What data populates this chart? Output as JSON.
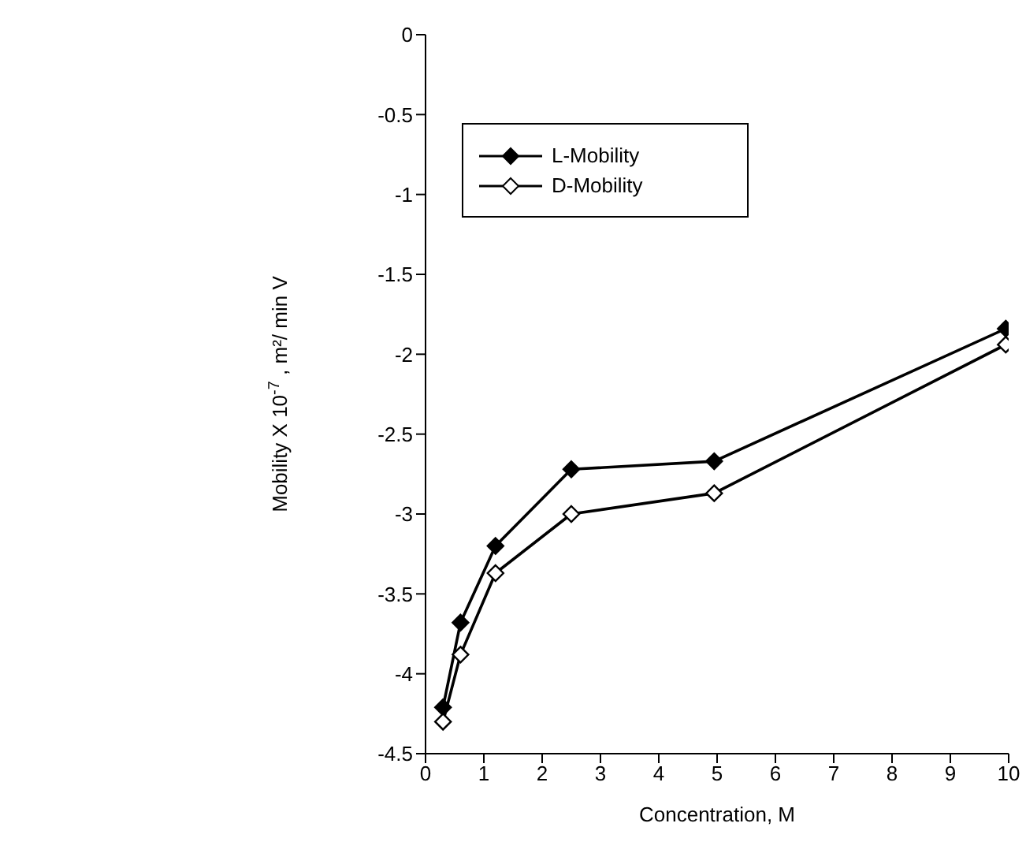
{
  "chart_data": {
    "type": "line",
    "xlabel": "Concentration, M",
    "ylabel": "Mobility X 10$^{-7}$ , m²/ min V",
    "xlim": [
      0,
      10
    ],
    "xticks": [
      0,
      1,
      2,
      3,
      4,
      5,
      6,
      7,
      8,
      9,
      10
    ],
    "ylim": [
      -4.5,
      0
    ],
    "yticks": [
      -4.5,
      -4,
      -3.5,
      -3,
      -2.5,
      -2,
      -1.5,
      -1,
      -0.5,
      0
    ],
    "grid": false,
    "legend": "top",
    "marker": "diamond",
    "line_style": "solid",
    "x": [
      0.3,
      0.6,
      1.2,
      2.5,
      4.95,
      9.95
    ],
    "series": [
      {
        "name": "L-Mobility",
        "color": "#000000",
        "values": [
          -4.21,
          -3.68,
          -3.2,
          -2.72,
          -2.67,
          -1.84
        ]
      },
      {
        "name": "D-Mobility",
        "color": "#000000",
        "values": [
          -4.3,
          -3.88,
          -3.37,
          -3.0,
          -2.87,
          -1.94
        ]
      }
    ]
  }
}
